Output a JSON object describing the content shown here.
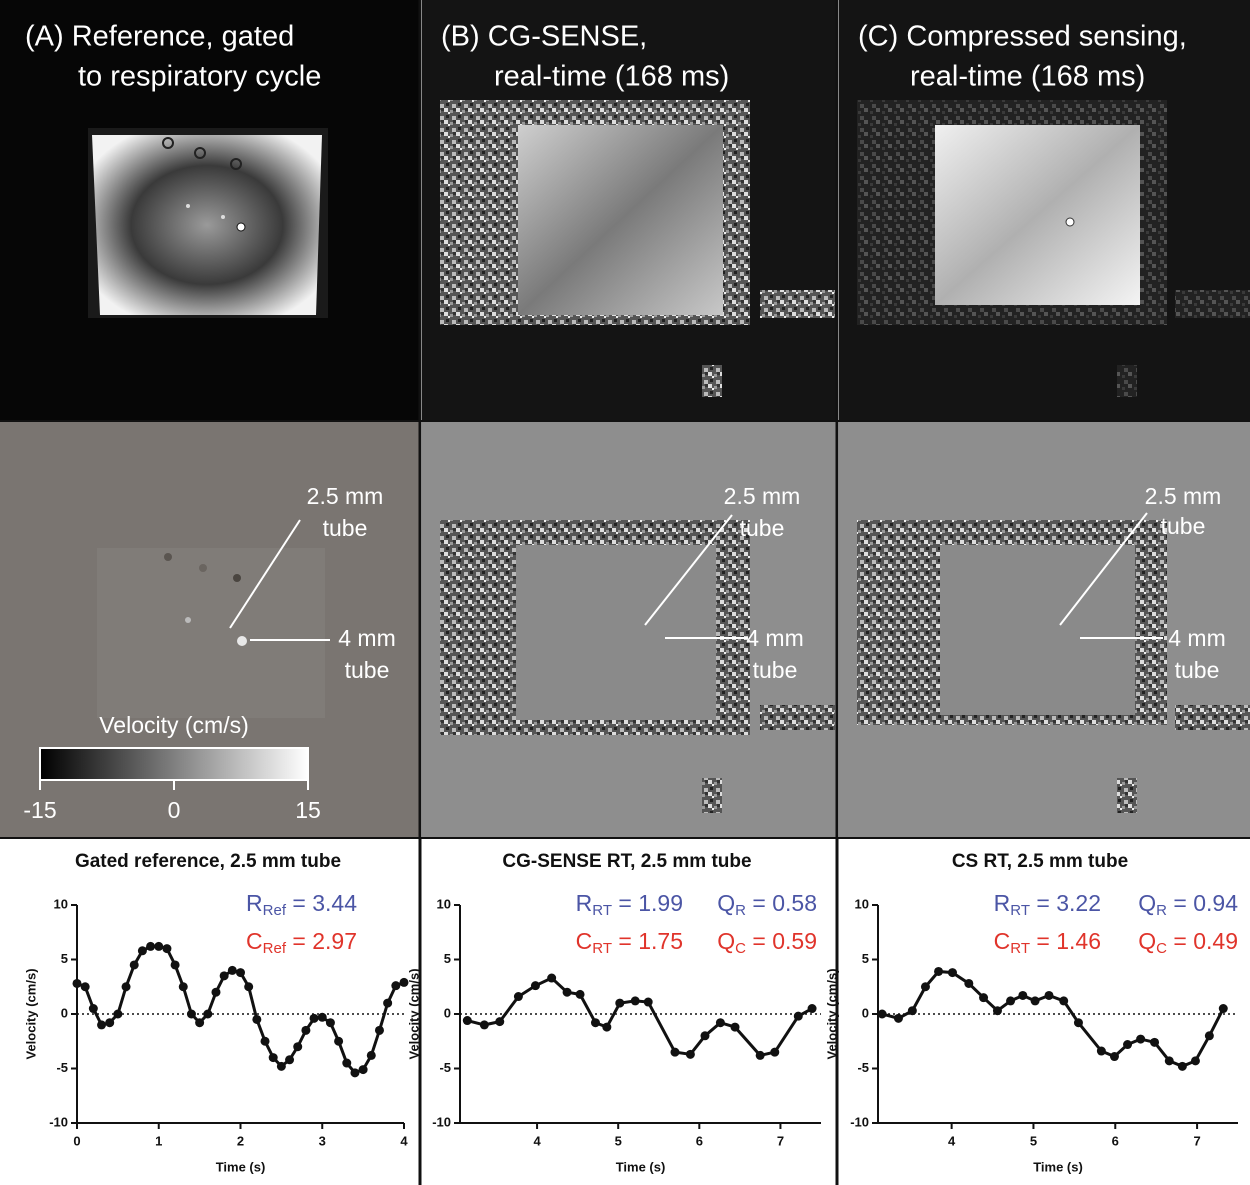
{
  "panels": [
    {
      "title": [
        "(A) Reference, gated",
        "to respiratory cycle"
      ],
      "annotations": [
        "2.5 mm",
        "tube",
        "4 mm",
        "tube"
      ]
    },
    {
      "title": [
        "(B) CG-SENSE,",
        "real-time (168 ms)"
      ],
      "annotations": [
        "2.5 mm",
        "tube",
        "4 mm",
        "tube"
      ]
    },
    {
      "title": [
        "(C) Compressed sensing,",
        "real-time (168 ms)"
      ],
      "annotations": [
        "2.5 mm",
        "tube",
        "4 mm",
        "tube"
      ]
    }
  ],
  "colorbar": {
    "label": "Velocity (cm/s)",
    "lim": [
      -15,
      15
    ],
    "ticks": [
      -15,
      0,
      15
    ]
  },
  "chart_data": [
    {
      "type": "line",
      "title": "Gated reference, 2.5 mm tube",
      "x_label": "Time (s)",
      "y_label": "Velocity (cm/s)",
      "x": [
        0,
        0.1,
        0.2,
        0.3,
        0.4,
        0.5,
        0.6,
        0.7,
        0.8,
        0.9,
        1.0,
        1.1,
        1.2,
        1.3,
        1.4,
        1.5,
        1.6,
        1.7,
        1.8,
        1.9,
        2.0,
        2.1,
        2.2,
        2.3,
        2.4,
        2.5,
        2.6,
        2.7,
        2.8,
        2.9,
        3.0,
        3.1,
        3.2,
        3.3,
        3.4,
        3.5,
        3.6,
        3.7,
        3.8,
        3.9,
        4.0
      ],
      "series": [
        {
          "color": "#111111",
          "values": [
            2.8,
            2.5,
            0.5,
            -1,
            -0.8,
            0,
            2.5,
            4.5,
            5.8,
            6.2,
            6.2,
            6,
            4.5,
            2.5,
            0,
            -0.8,
            0,
            2,
            3.5,
            4,
            3.8,
            2.5,
            -0.5,
            -2.5,
            -4,
            -4.8,
            -4.2,
            -3,
            -1.5,
            -0.4,
            -0.3,
            -0.8,
            -2.5,
            -4.5,
            -5.4,
            -5.1,
            -3.8,
            -1.5,
            1,
            2.6,
            2.9
          ]
        }
      ],
      "xlim": [
        0,
        4
      ],
      "xticks": [
        0,
        1,
        2,
        3,
        4
      ],
      "ylim": [
        -10,
        10
      ],
      "yticks": [
        -10,
        -5,
        0,
        5,
        10
      ],
      "zero_line": true,
      "stats": [
        [
          {
            "main": "R",
            "sub": "Ref",
            "rest": " = 3.44",
            "color": "#4b55a5"
          }
        ],
        [
          {
            "main": "C",
            "sub": "Ref",
            "rest": " = 2.97",
            "color": "#e0342b"
          }
        ]
      ]
    },
    {
      "type": "line",
      "title": "CG-SENSE RT, 2.5 mm tube",
      "x_label": "Time (s)",
      "y_label": "Velocity (cm/s)",
      "x": [
        3.14,
        3.35,
        3.54,
        3.77,
        3.98,
        4.18,
        4.37,
        4.53,
        4.72,
        4.86,
        5.02,
        5.21,
        5.37,
        5.7,
        5.89,
        6.07,
        6.26,
        6.44,
        6.75,
        6.93,
        7.22,
        7.39
      ],
      "series": [
        {
          "color": "#111111",
          "values": [
            -0.6,
            -1,
            -0.7,
            1.6,
            2.6,
            3.3,
            2,
            1.8,
            -0.8,
            -1.2,
            1,
            1.2,
            1.1,
            -3.5,
            -3.7,
            -2,
            -0.8,
            -1.2,
            -3.8,
            -3.5,
            -0.2,
            0.5
          ]
        }
      ],
      "xlim": [
        3.05,
        7.5
      ],
      "xticks": [
        4,
        5,
        6,
        7
      ],
      "ylim": [
        -10,
        10
      ],
      "yticks": [
        -10,
        -5,
        0,
        5,
        10
      ],
      "zero_line": true,
      "stats": [
        [
          {
            "main": "R",
            "sub": "RT",
            "rest": " = 1.99",
            "color": "#4b55a5"
          },
          {
            "main": "Q",
            "sub": "R",
            "rest": " = 0.58",
            "color": "#4b55a5"
          }
        ],
        [
          {
            "main": "C",
            "sub": "RT",
            "rest": " = 1.75",
            "color": "#e0342b"
          },
          {
            "main": "Q",
            "sub": "C",
            "rest": " = 0.59",
            "color": "#e0342b"
          }
        ]
      ]
    },
    {
      "type": "line",
      "title": "CS RT, 2.5 mm tube",
      "x_label": "Time (s)",
      "y_label": "Velocity (cm/s)",
      "x": [
        3.15,
        3.35,
        3.52,
        3.68,
        3.84,
        4.01,
        4.21,
        4.39,
        4.56,
        4.72,
        4.87,
        5.02,
        5.19,
        5.37,
        5.55,
        5.83,
        5.99,
        6.15,
        6.31,
        6.48,
        6.66,
        6.82,
        6.98,
        7.15,
        7.32
      ],
      "series": [
        {
          "color": "#111111",
          "values": [
            0,
            -0.4,
            0.3,
            2.5,
            3.9,
            3.8,
            2.8,
            1.5,
            0.3,
            1.2,
            1.7,
            1.2,
            1.7,
            1.2,
            -0.8,
            -3.4,
            -3.9,
            -2.8,
            -2.3,
            -2.6,
            -4.3,
            -4.8,
            -4.3,
            -2,
            0.5
          ]
        }
      ],
      "xlim": [
        3.1,
        7.5
      ],
      "xticks": [
        4,
        5,
        6,
        7
      ],
      "ylim": [
        -10,
        10
      ],
      "yticks": [
        -10,
        -5,
        0,
        5,
        10
      ],
      "zero_line": true,
      "stats": [
        [
          {
            "main": "R",
            "sub": "RT",
            "rest": " = 3.22",
            "color": "#4b55a5"
          },
          {
            "main": "Q",
            "sub": "R",
            "rest": " = 0.94",
            "color": "#4b55a5"
          }
        ],
        [
          {
            "main": "C",
            "sub": "RT",
            "rest": " = 1.46",
            "color": "#e0342b"
          },
          {
            "main": "Q",
            "sub": "C",
            "rest": " = 0.49",
            "color": "#e0342b"
          }
        ]
      ]
    }
  ]
}
